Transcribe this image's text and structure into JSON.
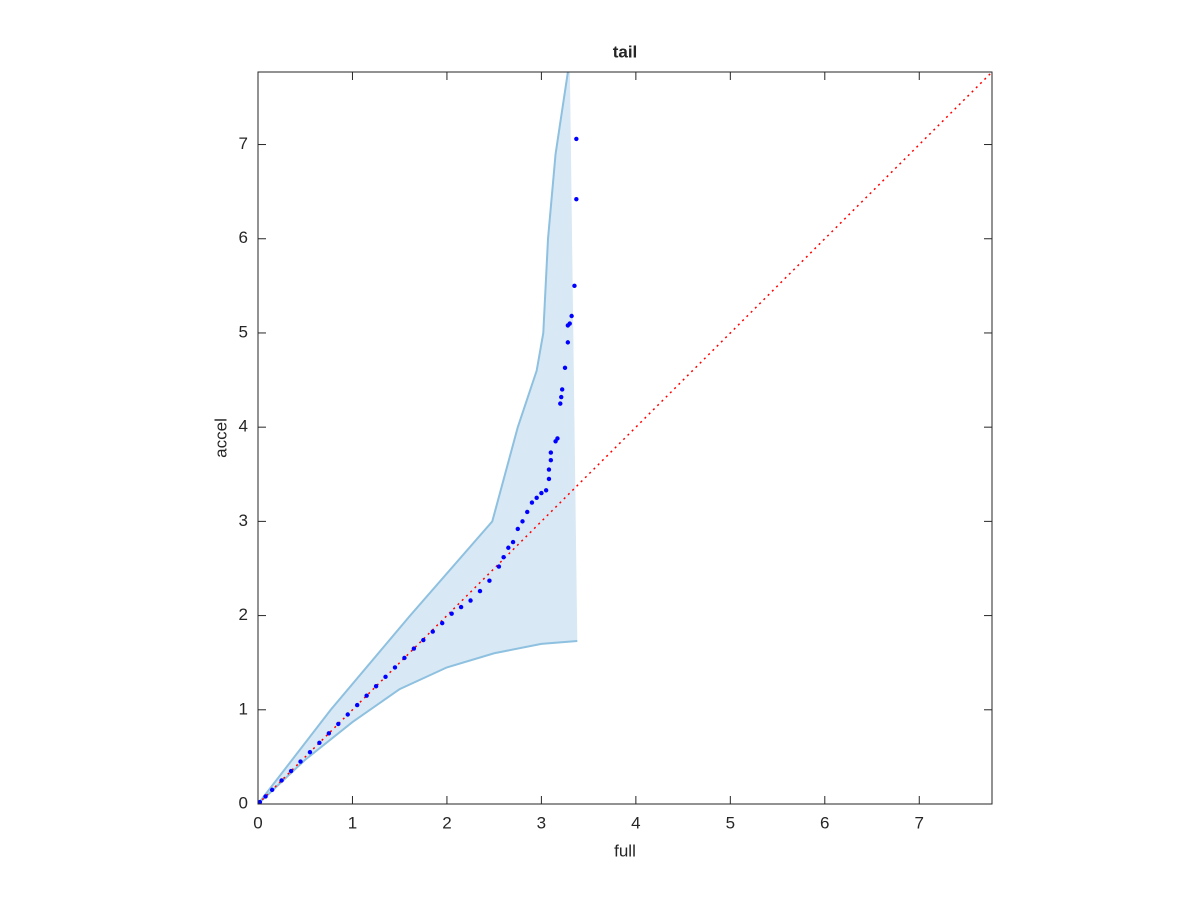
{
  "chart_data": {
    "type": "scatter",
    "title": "tail",
    "x_label": "full",
    "y_label": "accel",
    "xlim": [
      0,
      7.77
    ],
    "ylim": [
      0,
      7.77
    ],
    "xticks": [
      0,
      1,
      2,
      3,
      4,
      5,
      6,
      7
    ],
    "yticks": [
      0,
      1,
      2,
      3,
      4,
      5,
      6,
      7
    ],
    "grid": false,
    "series": [
      {
        "color": "#0000ff",
        "x": [
          0.02,
          0.08,
          0.15,
          0.25,
          0.35,
          0.45,
          0.55,
          0.65,
          0.75,
          0.85,
          0.95,
          1.05,
          1.15,
          1.25,
          1.35,
          1.45,
          1.55,
          1.65,
          1.75,
          1.85,
          1.95,
          2.05,
          2.15,
          2.25,
          2.35,
          2.45,
          2.55,
          2.6,
          2.65,
          2.7,
          2.75,
          2.8,
          2.85,
          2.9,
          2.95,
          3.0,
          3.05,
          3.08,
          3.08,
          3.1,
          3.1,
          3.15,
          3.17,
          3.2,
          3.21,
          3.22,
          3.25,
          3.28,
          3.28,
          3.3,
          3.32,
          3.35,
          3.37,
          3.37
        ],
        "values": [
          0.02,
          0.08,
          0.15,
          0.25,
          0.35,
          0.45,
          0.55,
          0.65,
          0.75,
          0.85,
          0.95,
          1.05,
          1.15,
          1.25,
          1.35,
          1.45,
          1.55,
          1.65,
          1.74,
          1.83,
          1.92,
          2.02,
          2.09,
          2.16,
          2.26,
          2.37,
          2.52,
          2.62,
          2.72,
          2.78,
          2.92,
          3.0,
          3.1,
          3.2,
          3.25,
          3.3,
          3.33,
          3.45,
          3.55,
          3.65,
          3.73,
          3.85,
          3.88,
          4.25,
          4.32,
          4.4,
          4.63,
          4.9,
          5.08,
          5.1,
          5.18,
          5.5,
          6.42,
          7.06
        ]
      }
    ],
    "band": {
      "fill_color": "#d8e8f4",
      "line_color": "#8ec0e0",
      "upper": {
        "x": [
          0,
          0.77,
          1.61,
          2.48,
          2.75,
          2.95,
          3.02,
          3.07,
          3.15,
          3.3
        ],
        "y": [
          0,
          1,
          2,
          3,
          4,
          4.6,
          5.0,
          6,
          6.9,
          7.9
        ]
      },
      "lower": {
        "x": [
          3.38,
          3.0,
          2.5,
          2.0,
          1.5,
          1.0,
          0.5,
          0
        ],
        "y": [
          1.73,
          1.7,
          1.6,
          1.45,
          1.22,
          0.87,
          0.47,
          0
        ]
      }
    },
    "reference": {
      "color": "#ff0000",
      "x": [
        0,
        7.77
      ],
      "y": [
        0,
        7.77
      ]
    }
  }
}
